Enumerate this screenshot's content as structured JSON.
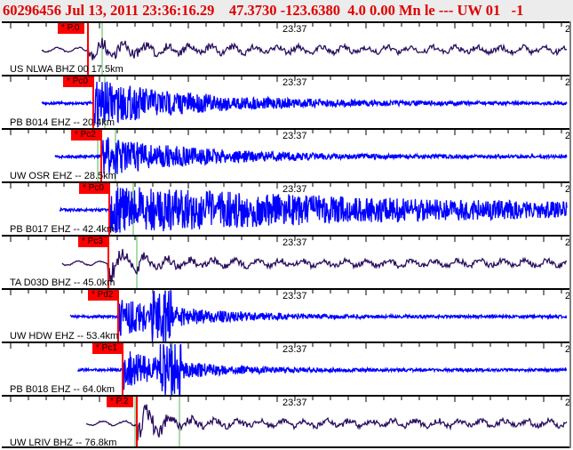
{
  "header": {
    "text": "60296456 Jul 13, 2011 23:36:16.29    47.3730 -123.6380  4.0 0.00 Mn le --- UW 01   -1"
  },
  "colors": {
    "title": "#e00000",
    "pick": "#ff0000",
    "trace_dark": "#2a0f5e",
    "trace_blue": "#0000ff",
    "marker": "#a8dca8"
  },
  "traces": [
    {
      "station": "US NLWA BHZ 00 17.5km",
      "pick": "* P.0",
      "time": "23:37",
      "edge": "2",
      "color": "dark"
    },
    {
      "station": "PB B014 EHZ -- 20.4km",
      "pick": "* Pc0",
      "time": "23:37",
      "edge": "2",
      "color": "blue"
    },
    {
      "station": "UW OSR EHZ -- 28.5km",
      "pick": "* Pc2",
      "time": "23:37",
      "edge": "2",
      "color": "blue"
    },
    {
      "station": "PB B017 EHZ -- 42.4km",
      "pick": "* Pc0",
      "time": "23:37",
      "edge": "2",
      "color": "blue"
    },
    {
      "station": "TA D03D BHZ -- 45.0km",
      "pick": "* Pc3",
      "time": "23:37",
      "edge": "2",
      "color": "dark"
    },
    {
      "station": "UW HDW EHZ -- 53.4km",
      "pick": "* Pd2",
      "time": "23:37",
      "edge": "2",
      "color": "blue"
    },
    {
      "station": "PB B018 EHZ -- 64.0km",
      "pick": "* Pc1",
      "time": "23:37",
      "edge": "2",
      "color": "blue"
    },
    {
      "station": "UW LRIV BHZ -- 76.8km",
      "pick": "* P.2",
      "time": "23:37",
      "edge": "2",
      "color": "dark"
    }
  ]
}
